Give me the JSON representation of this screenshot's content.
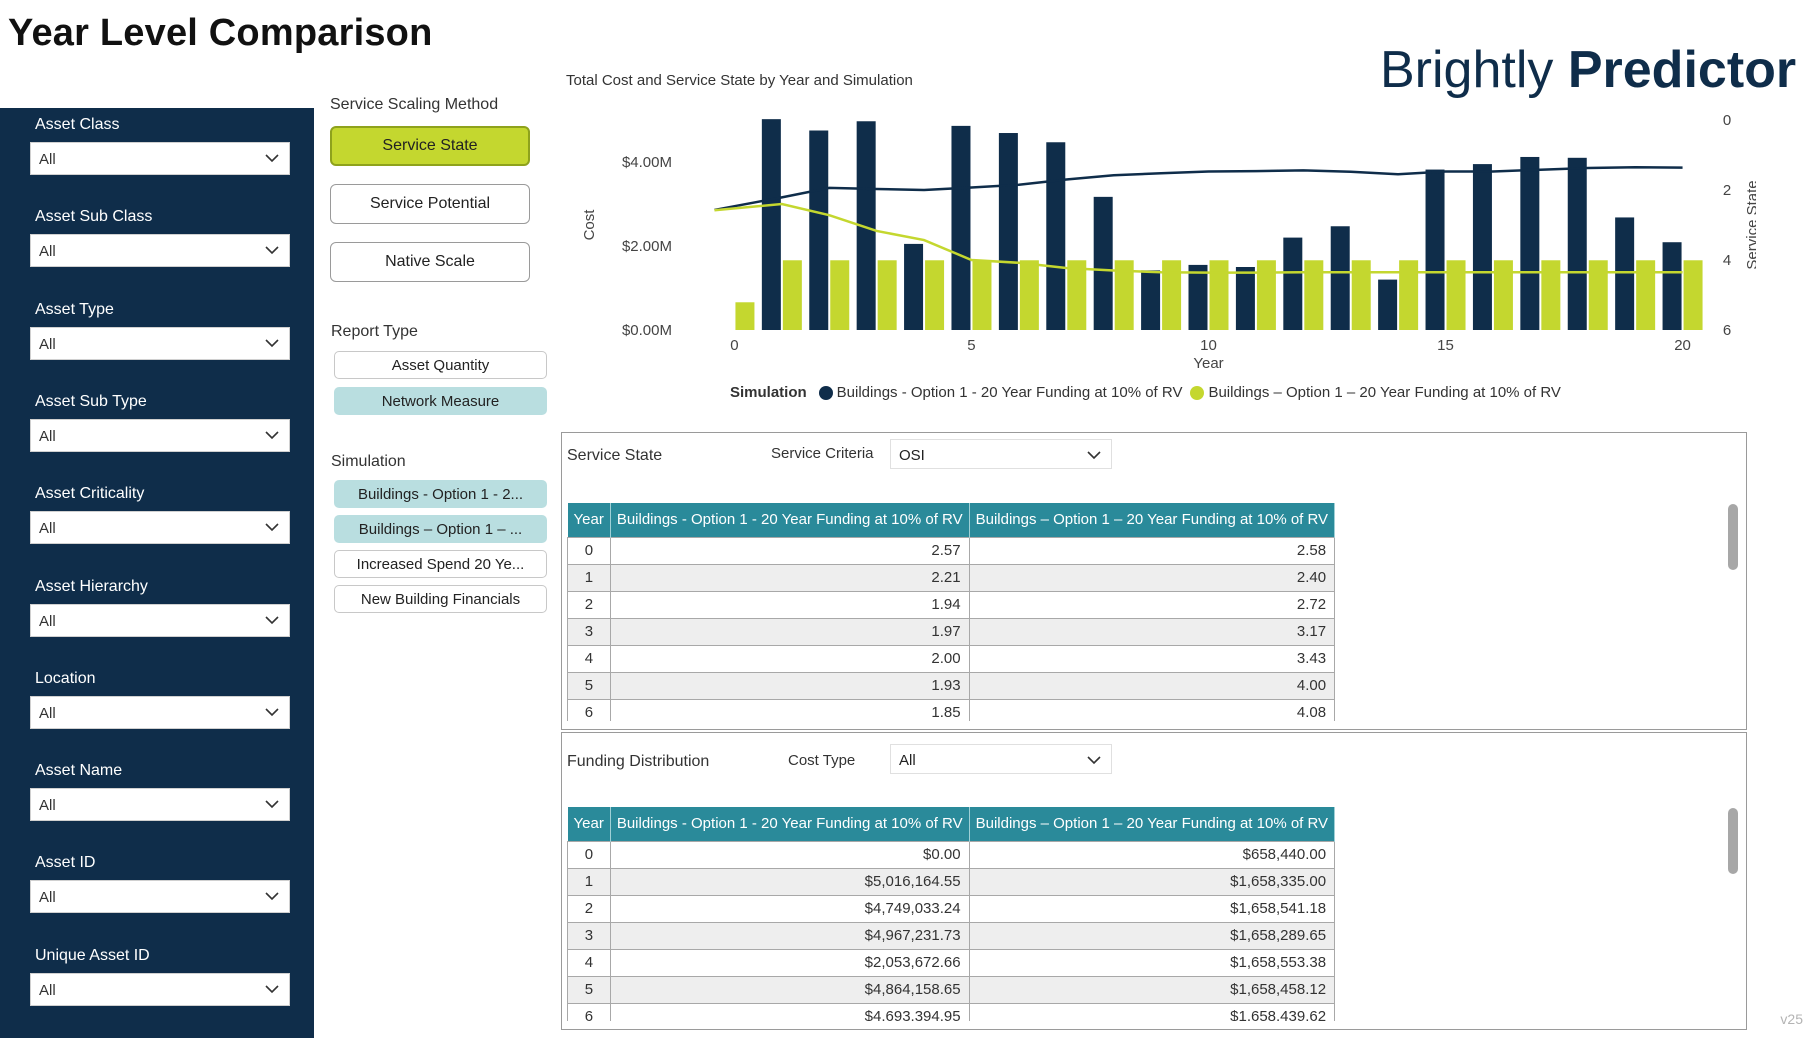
{
  "page": {
    "title": "Year Level Comparison",
    "logo": {
      "light": "Brightly ",
      "bold": "Predictor"
    },
    "version": "v25"
  },
  "sidebar": {
    "filters": [
      {
        "label": "Asset Class",
        "value": "All"
      },
      {
        "label": "Asset Sub Class",
        "value": "All"
      },
      {
        "label": "Asset Type",
        "value": "All"
      },
      {
        "label": "Asset Sub Type",
        "value": "All"
      },
      {
        "label": "Asset Criticality",
        "value": "All"
      },
      {
        "label": "Asset Hierarchy",
        "value": "All"
      },
      {
        "label": "Location",
        "value": "All"
      },
      {
        "label": "Asset Name",
        "value": "All"
      },
      {
        "label": "Asset ID",
        "value": "All"
      },
      {
        "label": "Unique Asset ID",
        "value": "All"
      }
    ]
  },
  "controls": {
    "scaling_label": "Service Scaling Method",
    "scaling_buttons": [
      {
        "label": "Service State",
        "active": true
      },
      {
        "label": "Service Potential",
        "active": false
      },
      {
        "label": "Native Scale",
        "active": false
      }
    ],
    "report_type_label": "Report Type",
    "report_buttons": [
      {
        "label": "Asset Quantity",
        "selected": false
      },
      {
        "label": "Network Measure",
        "selected": true
      }
    ],
    "simulation_label": "Simulation",
    "simulation_buttons": [
      {
        "label": "Buildings - Option 1 - 2...",
        "selected": true
      },
      {
        "label": "Buildings – Option 1 – ...",
        "selected": true
      },
      {
        "label": "Increased Spend 20 Ye...",
        "selected": false
      },
      {
        "label": "New Building Financials",
        "selected": false
      }
    ]
  },
  "chart_data": {
    "type": "bar",
    "title": "Total Cost and Service State by Year and Simulation",
    "xlabel": "Year",
    "ylabel": "Cost",
    "y2label": "Service State",
    "x_ticks": [
      0,
      5,
      10,
      15,
      20
    ],
    "y_ticks": [
      "$0.00M",
      "$2.00M",
      "$4.00M"
    ],
    "y2_ticks": [
      "0",
      "2",
      "4",
      "6"
    ],
    "ylim": [
      0,
      5.0
    ],
    "y2lim": [
      6,
      0
    ],
    "legend_title": "Simulation",
    "legend_position": "bottom",
    "colors": {
      "series1": "#0f2d4a",
      "series2": "#c4d72f"
    },
    "x": [
      0,
      1,
      2,
      3,
      4,
      5,
      6,
      7,
      8,
      9,
      10,
      11,
      12,
      13,
      14,
      15,
      16,
      17,
      18,
      19,
      20
    ],
    "series": [
      {
        "name": "Buildings - Option 1 - 20 Year Funding at 10% of RV",
        "values": [
          0.0,
          5.02,
          4.75,
          4.97,
          2.05,
          4.86,
          4.69,
          4.47,
          3.17,
          1.42,
          1.55,
          1.5,
          2.2,
          2.47,
          1.2,
          3.82,
          3.95,
          4.12,
          4.1,
          2.68,
          2.09
        ],
        "line": [
          2.57,
          2.21,
          1.94,
          1.97,
          2.0,
          1.93,
          1.85,
          1.7,
          1.58,
          1.52,
          1.47,
          1.46,
          1.44,
          1.48,
          1.55,
          1.47,
          1.47,
          1.42,
          1.37,
          1.35,
          1.36
        ]
      },
      {
        "name": "Buildings – Option 1 – 20 Year Funding at 10% of RV",
        "values": [
          0.66,
          1.66,
          1.66,
          1.66,
          1.66,
          1.66,
          1.66,
          1.66,
          1.66,
          1.66,
          1.66,
          1.66,
          1.66,
          1.66,
          1.66,
          1.66,
          1.66,
          1.66,
          1.66,
          1.66,
          1.66
        ],
        "line": [
          2.58,
          2.4,
          2.72,
          3.17,
          3.43,
          4.0,
          4.08,
          4.23,
          4.3,
          4.35,
          4.36,
          4.36,
          4.35,
          4.35,
          4.35,
          4.35,
          4.35,
          4.35,
          4.35,
          4.35,
          4.35
        ]
      }
    ]
  },
  "service_panel": {
    "title": "Service State",
    "criteria_label": "Service Criteria",
    "criteria_value": "OSI",
    "columns": [
      "Year",
      "Buildings - Option 1 - 20 Year Funding at 10% of RV",
      "Buildings – Option 1 – 20 Year Funding at 10% of RV"
    ],
    "rows": [
      [
        "0",
        "2.57",
        "2.58"
      ],
      [
        "1",
        "2.21",
        "2.40"
      ],
      [
        "2",
        "1.94",
        "2.72"
      ],
      [
        "3",
        "1.97",
        "3.17"
      ],
      [
        "4",
        "2.00",
        "3.43"
      ],
      [
        "5",
        "1.93",
        "4.00"
      ],
      [
        "6",
        "1.85",
        "4.08"
      ]
    ]
  },
  "funding_panel": {
    "title": "Funding Distribution",
    "cost_type_label": "Cost Type",
    "cost_type_value": "All",
    "columns": [
      "Year",
      "Buildings - Option 1 - 20 Year Funding at 10% of RV",
      "Buildings – Option 1 – 20 Year Funding at 10% of RV"
    ],
    "rows": [
      [
        "0",
        "$0.00",
        "$658,440.00"
      ],
      [
        "1",
        "$5,016,164.55",
        "$1,658,335.00"
      ],
      [
        "2",
        "$4,749,033.24",
        "$1,658,541.18"
      ],
      [
        "3",
        "$4,967,231.73",
        "$1,658,289.65"
      ],
      [
        "4",
        "$2,053,672.66",
        "$1,658,553.38"
      ],
      [
        "5",
        "$4,864,158.65",
        "$1,658,458.12"
      ],
      [
        "6",
        "$4,693,394.95",
        "$1,658,439.62"
      ]
    ]
  }
}
